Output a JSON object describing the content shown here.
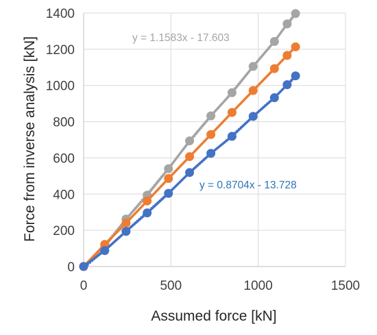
{
  "chart_data": {
    "type": "scatter",
    "xlabel": "Assumed force [kN]",
    "ylabel": "Force from inverse analysis [kN]",
    "xlim": [
      0,
      1500
    ],
    "ylim": [
      0,
      1400
    ],
    "xticks": [
      0,
      500,
      1000,
      1500
    ],
    "yticks": [
      0,
      200,
      400,
      600,
      800,
      1000,
      1200,
      1400
    ],
    "x_tick_labels": [
      "0",
      "500",
      "1000",
      "1500"
    ],
    "y_tick_labels": [
      "0",
      "200",
      "400",
      "600",
      "800",
      "1000",
      "1200",
      "1400"
    ],
    "grid": true,
    "legend": "none",
    "series": [
      {
        "color": "#A5A5A5",
        "x": [
          0,
          121,
          243,
          364,
          486,
          607,
          729,
          850,
          971,
          1093,
          1166,
          1214
        ],
        "y": [
          0,
          110,
          262,
          394,
          540,
          694,
          832,
          960,
          1105,
          1243,
          1340,
          1397
        ],
        "trendline": true,
        "trendline_equation": "y = 1.1583x - 17.603"
      },
      {
        "color": "#ED7D31",
        "x": [
          0,
          121,
          243,
          364,
          486,
          607,
          729,
          850,
          971,
          1093,
          1166,
          1214
        ],
        "y": [
          0,
          122,
          240,
          362,
          486,
          607,
          729,
          851,
          972,
          1093,
          1166,
          1213
        ],
        "trendline": false
      },
      {
        "color": "#4472C4",
        "x": [
          0,
          121,
          243,
          364,
          486,
          607,
          729,
          850,
          971,
          1093,
          1166,
          1214
        ],
        "y": [
          0,
          88,
          194,
          296,
          404,
          519,
          625,
          719,
          829,
          932,
          1004,
          1053
        ],
        "trendline": true,
        "trendline_equation": "y = 0.8704x - 13.728"
      }
    ],
    "annotations": [
      {
        "text": "y = 1.1583x - 17.603",
        "color": "#A5A5A5"
      },
      {
        "text": "y = 0.8704x - 13.728",
        "color": "#2E75B6"
      }
    ]
  }
}
